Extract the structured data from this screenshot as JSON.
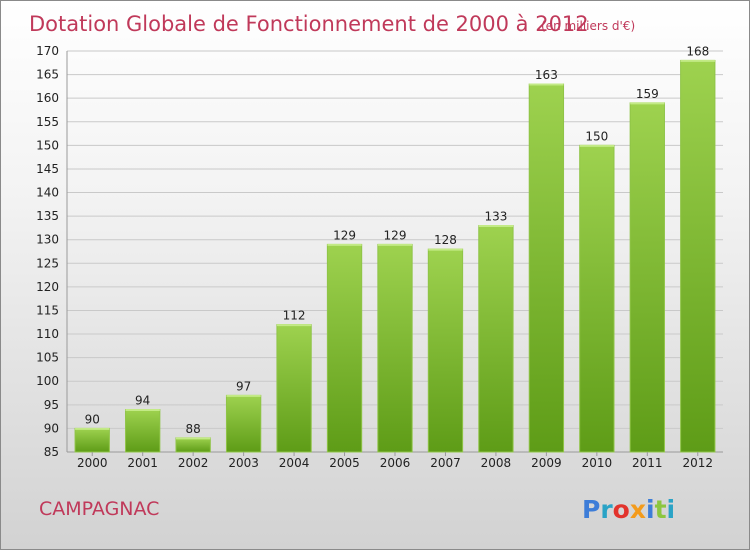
{
  "header": {
    "title": "Dotation Globale de Fonctionnement de 2000 à 2012",
    "unit": "(en milliers d'€)"
  },
  "footer": {
    "commune": "CAMPAGNAC",
    "logo": "Proxiti"
  },
  "colors": {
    "accent": "#c0395a",
    "bar_light": "#9ed24f",
    "bar_dark": "#5e9c17",
    "logo_letters": [
      "#3d7dd8",
      "#2aa3c6",
      "#e2332c",
      "#f39b1c",
      "#3d7dd8",
      "#8cc63f",
      "#2aa3c6"
    ]
  },
  "chart_data": {
    "type": "bar",
    "title": "Dotation Globale de Fonctionnement de 2000 à 2012",
    "subtitle": "(en milliers d'€)",
    "categories": [
      "2000",
      "2001",
      "2002",
      "2003",
      "2004",
      "2005",
      "2006",
      "2007",
      "2008",
      "2009",
      "2010",
      "2011",
      "2012"
    ],
    "values": [
      90,
      94,
      88,
      97,
      112,
      129,
      129,
      128,
      133,
      163,
      150,
      159,
      168
    ],
    "ylim": [
      85,
      170
    ],
    "yticks": [
      85,
      90,
      95,
      100,
      105,
      110,
      115,
      120,
      125,
      130,
      135,
      140,
      145,
      150,
      155,
      160,
      165,
      170
    ],
    "grid": true,
    "xlabel": "",
    "ylabel": ""
  }
}
